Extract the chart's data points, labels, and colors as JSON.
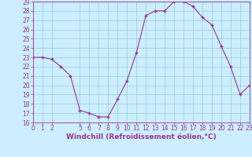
{
  "hours": [
    0,
    1,
    2,
    3,
    4,
    5,
    6,
    7,
    8,
    9,
    10,
    11,
    12,
    13,
    14,
    15,
    16,
    17,
    18,
    19,
    20,
    21,
    22,
    23
  ],
  "windchill_values": [
    23.0,
    23.0,
    22.8,
    22.0,
    21.0,
    17.3,
    17.0,
    16.6,
    16.6,
    18.5,
    20.5,
    23.5,
    27.5,
    28.0,
    28.0,
    29.0,
    29.0,
    28.5,
    27.3,
    26.5,
    24.2,
    22.0,
    19.0,
    20.0
  ],
  "line_color": "#993399",
  "marker_color": "#993399",
  "bg_color": "#cceeff",
  "grid_color": "#99cccc",
  "title": "Windchill (Refroidissement éolien,°C)",
  "xlim": [
    0,
    23
  ],
  "ylim": [
    16,
    29
  ],
  "yticks": [
    16,
    17,
    18,
    19,
    20,
    21,
    22,
    23,
    24,
    25,
    26,
    27,
    28,
    29
  ],
  "xticks": [
    0,
    1,
    2,
    5,
    6,
    7,
    8,
    9,
    10,
    11,
    12,
    13,
    14,
    15,
    16,
    17,
    18,
    19,
    20,
    21,
    22,
    23
  ],
  "tick_label_fontsize": 5.5,
  "xlabel_fontsize": 6.5
}
